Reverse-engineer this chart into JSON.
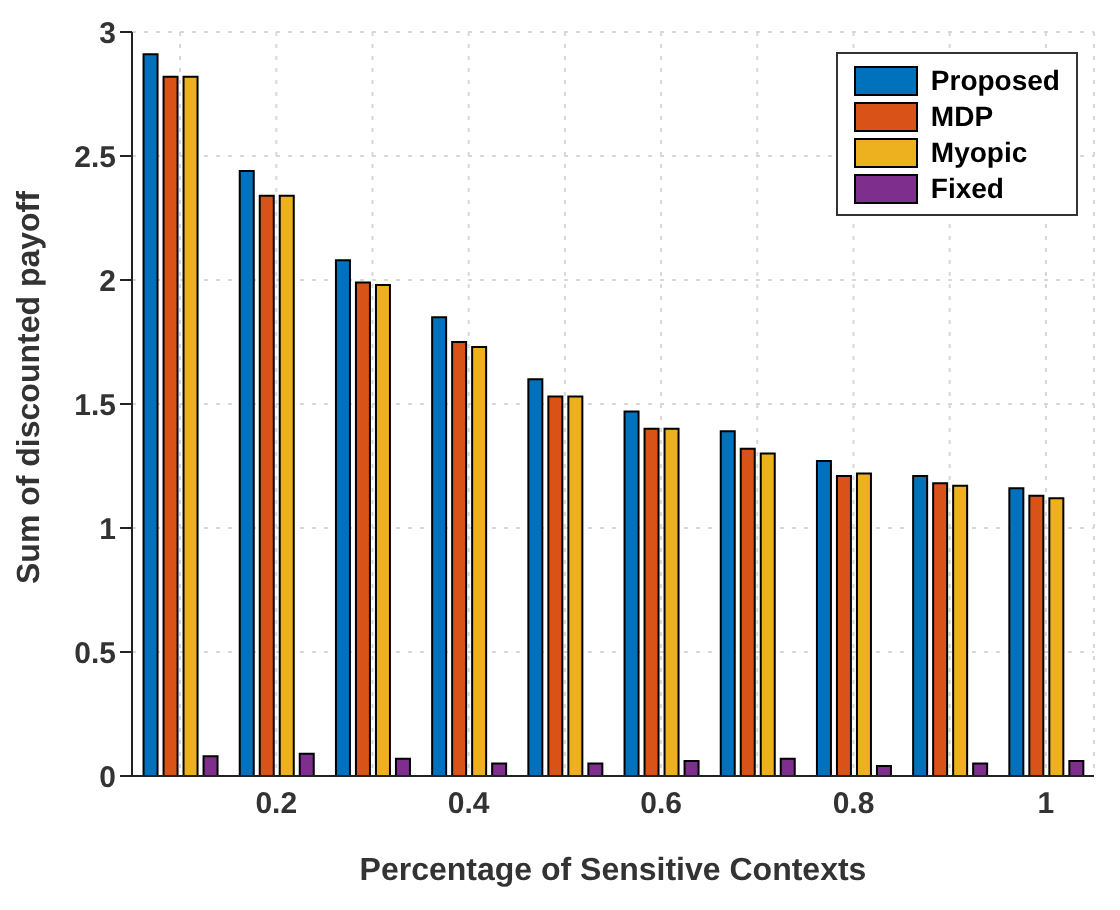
{
  "chart_data": {
    "type": "bar",
    "xlabel": "Percentage of Sensitive Contexts",
    "ylabel": "Sum of discounted payoff",
    "categories": [
      null,
      "0.2",
      null,
      "0.4",
      null,
      "0.6",
      null,
      "0.8",
      null,
      "1"
    ],
    "series": [
      {
        "name": "Proposed",
        "color": "#0072bd",
        "values": [
          2.91,
          2.44,
          2.08,
          1.85,
          1.6,
          1.47,
          1.39,
          1.27,
          1.21,
          1.16
        ]
      },
      {
        "name": "MDP",
        "color": "#d95319",
        "values": [
          2.82,
          2.34,
          1.99,
          1.75,
          1.53,
          1.4,
          1.32,
          1.21,
          1.18,
          1.13
        ]
      },
      {
        "name": "Myopic",
        "color": "#edb120",
        "values": [
          2.82,
          2.34,
          1.98,
          1.73,
          1.53,
          1.4,
          1.3,
          1.22,
          1.17,
          1.12
        ]
      },
      {
        "name": "Fixed",
        "color": "#7e2f8e",
        "values": [
          0.08,
          0.09,
          0.07,
          0.05,
          0.05,
          0.06,
          0.07,
          0.04,
          0.05,
          0.06
        ]
      }
    ],
    "ylim": [
      0,
      3
    ],
    "yticks": [
      0,
      0.5,
      1,
      1.5,
      2,
      2.5,
      3
    ],
    "grid": true,
    "legend": "top right"
  }
}
